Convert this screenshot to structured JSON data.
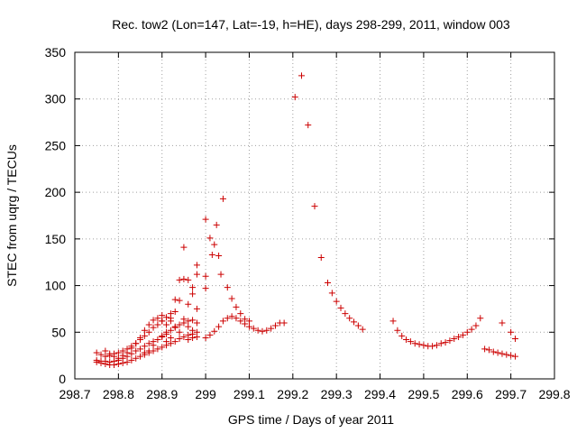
{
  "chart_data": {
    "type": "scatter",
    "title": "Rec. tow2 (Lon=147, Lat=-19, h=HE), days 298-299, 2011, window 003",
    "xlabel": "GPS time / Days of year 2011",
    "ylabel": "STEC from uqrg / TECUs",
    "xlim": [
      298.7,
      299.8
    ],
    "ylim": [
      0,
      350
    ],
    "xticks": [
      "298.7",
      "298.8",
      "298.9",
      "299",
      "299.1",
      "299.2",
      "299.3",
      "299.4",
      "299.5",
      "299.6",
      "299.7",
      "299.8"
    ],
    "yticks": [
      "0",
      "50",
      "100",
      "150",
      "200",
      "250",
      "300",
      "350"
    ],
    "grid": true,
    "marker": "plus",
    "color": "#cc0000",
    "series": [
      {
        "points": [
          [
            298.75,
            18
          ],
          [
            298.76,
            17
          ],
          [
            298.77,
            16
          ],
          [
            298.78,
            15
          ],
          [
            298.79,
            15
          ],
          [
            298.8,
            16
          ],
          [
            298.81,
            17
          ],
          [
            298.82,
            18
          ],
          [
            298.83,
            20
          ],
          [
            298.84,
            22
          ],
          [
            298.85,
            24
          ],
          [
            298.86,
            26
          ],
          [
            298.87,
            28
          ],
          [
            298.88,
            30
          ],
          [
            298.89,
            32
          ],
          [
            298.9,
            34
          ],
          [
            298.91,
            36
          ],
          [
            298.92,
            38
          ],
          [
            298.93,
            40
          ],
          [
            298.94,
            43
          ],
          [
            298.95,
            45
          ],
          [
            298.96,
            47
          ],
          [
            298.97,
            48
          ],
          [
            298.75,
            20
          ],
          [
            298.76,
            19
          ],
          [
            298.77,
            19
          ],
          [
            298.78,
            18
          ],
          [
            298.79,
            19
          ],
          [
            298.8,
            20
          ],
          [
            298.81,
            22
          ],
          [
            298.82,
            24
          ],
          [
            298.83,
            27
          ],
          [
            298.84,
            30
          ],
          [
            298.85,
            32
          ],
          [
            298.86,
            35
          ],
          [
            298.87,
            38
          ],
          [
            298.88,
            40
          ],
          [
            298.89,
            42
          ],
          [
            298.9,
            45
          ],
          [
            298.91,
            48
          ],
          [
            298.92,
            52
          ],
          [
            298.93,
            55
          ],
          [
            298.94,
            58
          ],
          [
            298.95,
            60
          ],
          [
            298.96,
            62
          ],
          [
            298.97,
            63
          ],
          [
            298.75,
            28
          ],
          [
            298.76,
            26
          ],
          [
            298.77,
            24
          ],
          [
            298.78,
            25
          ],
          [
            298.79,
            27
          ],
          [
            298.8,
            28
          ],
          [
            298.81,
            30
          ],
          [
            298.82,
            32
          ],
          [
            298.83,
            35
          ],
          [
            298.84,
            38
          ],
          [
            298.85,
            42
          ],
          [
            298.86,
            46
          ],
          [
            298.87,
            50
          ],
          [
            298.88,
            55
          ],
          [
            298.89,
            58
          ],
          [
            298.9,
            62
          ],
          [
            298.91,
            66
          ],
          [
            298.92,
            70
          ],
          [
            298.93,
            85
          ],
          [
            298.94,
            106
          ],
          [
            298.95,
            141
          ],
          [
            298.96,
            106
          ],
          [
            298.97,
            91
          ],
          [
            298.77,
            30
          ],
          [
            298.78,
            27
          ],
          [
            298.79,
            24
          ],
          [
            298.8,
            22
          ],
          [
            298.81,
            25
          ],
          [
            298.82,
            28
          ],
          [
            298.83,
            33
          ],
          [
            298.84,
            38
          ],
          [
            298.85,
            44
          ],
          [
            298.86,
            52
          ],
          [
            298.87,
            58
          ],
          [
            298.88,
            63
          ],
          [
            298.89,
            65
          ],
          [
            298.9,
            62
          ],
          [
            298.91,
            58
          ],
          [
            298.92,
            65
          ],
          [
            298.93,
            72
          ],
          [
            298.94,
            84
          ],
          [
            298.95,
            107
          ],
          [
            298.96,
            80
          ],
          [
            298.97,
            98
          ],
          [
            298.98,
            112
          ],
          [
            298.98,
            122
          ],
          [
            298.95,
            64
          ],
          [
            298.96,
            56
          ],
          [
            298.97,
            52
          ],
          [
            298.98,
            50
          ],
          [
            298.98,
            60
          ],
          [
            298.98,
            75
          ],
          [
            298.98,
            45
          ],
          [
            298.97,
            44
          ],
          [
            298.96,
            42
          ],
          [
            298.9,
            46
          ],
          [
            298.9,
            68
          ],
          [
            298.91,
            50
          ],
          [
            298.92,
            62
          ],
          [
            298.93,
            56
          ],
          [
            298.94,
            50
          ],
          [
            298.92,
            44
          ],
          [
            298.91,
            40
          ],
          [
            298.88,
            36
          ],
          [
            298.87,
            30
          ],
          [
            298.86,
            28
          ],
          [
            299.0,
            44
          ],
          [
            299.01,
            47
          ],
          [
            299.02,
            51
          ],
          [
            299.03,
            56
          ],
          [
            299.04,
            62
          ],
          [
            299.05,
            65
          ],
          [
            299.06,
            67
          ],
          [
            299.07,
            65
          ],
          [
            299.08,
            62
          ],
          [
            299.09,
            59
          ],
          [
            299.1,
            56
          ],
          [
            299.11,
            54
          ],
          [
            299.12,
            52
          ],
          [
            299.13,
            51
          ],
          [
            299.14,
            52
          ],
          [
            299.15,
            54
          ],
          [
            299.16,
            57
          ],
          [
            299.17,
            60
          ],
          [
            299.18,
            60
          ],
          [
            299.0,
            171
          ],
          [
            299.01,
            151
          ],
          [
            299.015,
            133
          ],
          [
            299.02,
            144
          ],
          [
            299.025,
            165
          ],
          [
            299.03,
            132
          ],
          [
            299.035,
            112
          ],
          [
            299.04,
            193
          ],
          [
            299.05,
            98
          ],
          [
            299.0,
            110
          ],
          [
            299.0,
            97
          ],
          [
            299.06,
            86
          ],
          [
            299.07,
            77
          ],
          [
            299.08,
            70
          ],
          [
            299.09,
            64
          ],
          [
            299.1,
            62
          ],
          [
            299.205,
            302
          ],
          [
            299.22,
            325
          ],
          [
            299.235,
            272
          ],
          [
            299.25,
            185
          ],
          [
            299.265,
            130
          ],
          [
            299.28,
            103
          ],
          [
            299.29,
            92
          ],
          [
            299.3,
            83
          ],
          [
            299.31,
            76
          ],
          [
            299.32,
            70
          ],
          [
            299.33,
            65
          ],
          [
            299.34,
            61
          ],
          [
            299.35,
            57
          ],
          [
            299.36,
            53
          ],
          [
            299.43,
            62
          ],
          [
            299.44,
            52
          ],
          [
            299.45,
            46
          ],
          [
            299.46,
            42
          ],
          [
            299.47,
            40
          ],
          [
            299.48,
            38
          ],
          [
            299.49,
            37
          ],
          [
            299.5,
            36
          ],
          [
            299.51,
            35
          ],
          [
            299.52,
            35
          ],
          [
            299.53,
            36
          ],
          [
            299.54,
            38
          ],
          [
            299.55,
            39
          ],
          [
            299.56,
            41
          ],
          [
            299.57,
            43
          ],
          [
            299.58,
            45
          ],
          [
            299.59,
            47
          ],
          [
            299.6,
            50
          ],
          [
            299.61,
            53
          ],
          [
            299.62,
            57
          ],
          [
            299.63,
            65
          ],
          [
            299.64,
            32
          ],
          [
            299.65,
            31
          ],
          [
            299.66,
            29
          ],
          [
            299.67,
            28
          ],
          [
            299.68,
            27
          ],
          [
            299.69,
            26
          ],
          [
            299.7,
            25
          ],
          [
            299.71,
            24
          ],
          [
            299.68,
            60
          ],
          [
            299.7,
            50
          ],
          [
            299.71,
            43
          ]
        ]
      }
    ]
  }
}
